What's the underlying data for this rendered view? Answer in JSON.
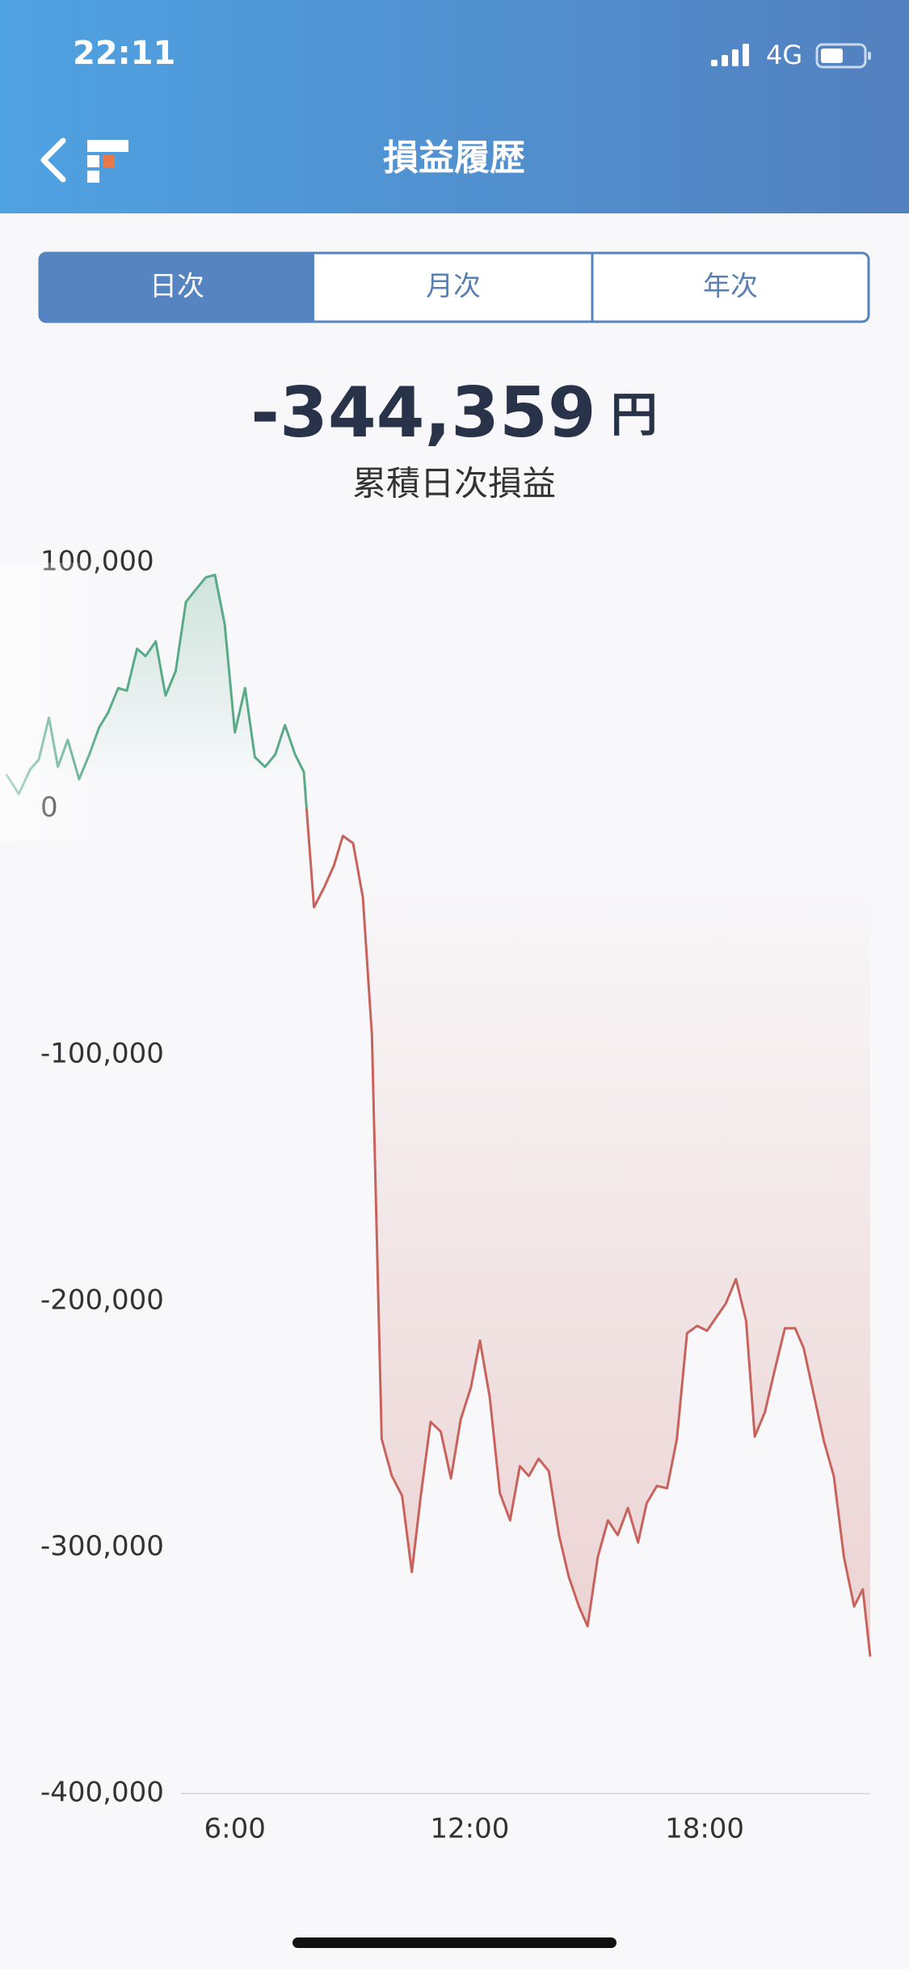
{
  "status_bar": {
    "time": "22:11",
    "network": "4G"
  },
  "header": {
    "title": "損益履歴"
  },
  "tabs": [
    "日次",
    "月次",
    "年次"
  ],
  "summary": {
    "value": "-344,359",
    "unit": "円",
    "label": "累積日次損益"
  },
  "chart_data": {
    "type": "line",
    "x": [
      0.16,
      0.48,
      0.77,
      0.99,
      1.25,
      1.48,
      1.73,
      2.02,
      2.28,
      2.53,
      2.76,
      3.02,
      3.24,
      3.5,
      3.72,
      3.98,
      4.23,
      4.49,
      4.75,
      5.0,
      5.26,
      5.49,
      5.74,
      6.0,
      6.26,
      6.51,
      6.77,
      7.03,
      7.28,
      7.54,
      7.76,
      8.02,
      8.28,
      8.53,
      8.76,
      9.02,
      9.27,
      9.5,
      9.75,
      10.01,
      10.27,
      10.52,
      10.75,
      11.0,
      11.26,
      11.52,
      11.77,
      12.03,
      12.26,
      12.51,
      12.77,
      13.03,
      13.28,
      13.51,
      13.76,
      14.02,
      14.28,
      14.53,
      14.79,
      15.01,
      15.27,
      15.53,
      15.78,
      16.04,
      16.3,
      16.52,
      16.78,
      17.04,
      17.29,
      17.55,
      17.81,
      18.06,
      18.32,
      18.54,
      18.8,
      19.06,
      19.28,
      19.54,
      19.79,
      20.05,
      20.31,
      20.53,
      20.79,
      21.05,
      21.3,
      21.56,
      21.82,
      22.04,
      22.23
    ],
    "values": [
      14000,
      6000,
      16000,
      20000,
      37000,
      17000,
      28000,
      12000,
      22000,
      33000,
      39000,
      49000,
      48000,
      65000,
      62000,
      68000,
      46000,
      56000,
      84000,
      89000,
      94000,
      95000,
      75000,
      31000,
      49000,
      21000,
      17000,
      22000,
      34000,
      22000,
      15000,
      -40000,
      -32000,
      -23000,
      -11000,
      -14000,
      -36000,
      -92000,
      -256000,
      -271000,
      -279000,
      -310000,
      -279000,
      -249000,
      -253000,
      -272000,
      -248000,
      -235000,
      -216000,
      -239000,
      -278000,
      -289000,
      -267000,
      -271000,
      -264000,
      -269000,
      -295000,
      -312000,
      -324000,
      -332000,
      -304000,
      -289000,
      -295000,
      -284000,
      -298000,
      -282000,
      -275000,
      -276000,
      -256000,
      -213000,
      -210000,
      -212000,
      -206000,
      -201000,
      -191000,
      -208000,
      -255000,
      -245000,
      -228000,
      -211000,
      -211000,
      -219000,
      -238000,
      -257000,
      -271000,
      -304000,
      -324000,
      -317000,
      -344359
    ],
    "color_positive": "#5aaa88",
    "color_negative": "#c8625c",
    "xlim": [
      0,
      22.23
    ],
    "ylim": [
      -400000,
      100000
    ],
    "xticks": [
      {
        "value": 6,
        "label": "6:00"
      },
      {
        "value": 12,
        "label": "12:00"
      },
      {
        "value": 18,
        "label": "18:00"
      }
    ],
    "yticks": [
      {
        "value": 100000,
        "label": "100,000"
      },
      0,
      {
        "value": -100000,
        "label": "-100,000"
      },
      {
        "value": -200000,
        "label": "-200,000"
      },
      {
        "value": -300000,
        "label": "-300,000"
      },
      {
        "value": -400000,
        "label": "-400,000"
      }
    ],
    "grid": false
  }
}
